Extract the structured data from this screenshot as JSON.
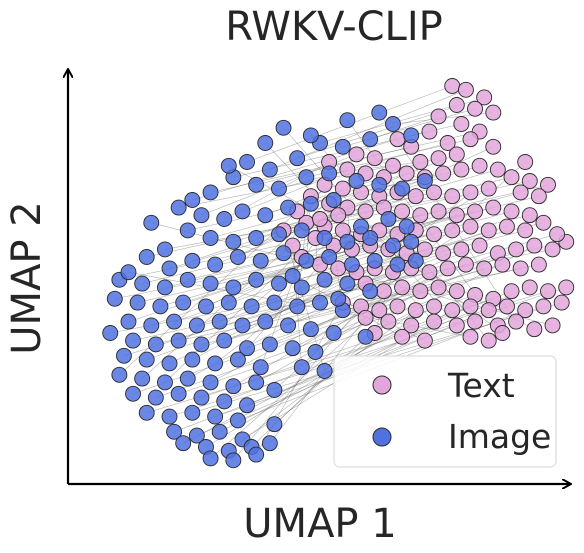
{
  "chart_data": {
    "type": "scatter",
    "title": "RWKV-CLIP",
    "xlabel": "UMAP 1",
    "ylabel": "UMAP 2",
    "xlim": [
      0,
      10
    ],
    "ylim": [
      0,
      10
    ],
    "grid": false,
    "legend_position": "bottom-right",
    "paired_lines": true,
    "colors": {
      "text": "#e3a6dc",
      "image": "#5072e0",
      "edge": "#2b2b2b",
      "link": "#555555",
      "axis": "#000000"
    },
    "series": [
      {
        "name": "Text",
        "points": [
          [
            7.9,
            10.0
          ],
          [
            8.2,
            9.9
          ],
          [
            8.6,
            9.7
          ],
          [
            8.0,
            9.5
          ],
          [
            8.4,
            9.4
          ],
          [
            7.6,
            9.2
          ],
          [
            8.8,
            9.3
          ],
          [
            8.1,
            9.0
          ],
          [
            7.4,
            8.8
          ],
          [
            8.5,
            8.8
          ],
          [
            6.7,
            8.6
          ],
          [
            7.0,
            8.4
          ],
          [
            7.8,
            8.5
          ],
          [
            8.3,
            8.6
          ],
          [
            7.2,
            8.0
          ],
          [
            7.6,
            8.1
          ],
          [
            8.0,
            8.2
          ],
          [
            8.8,
            8.4
          ],
          [
            6.2,
            8.1
          ],
          [
            6.6,
            7.9
          ],
          [
            5.8,
            8.2
          ],
          [
            5.2,
            8.0
          ],
          [
            5.6,
            7.8
          ],
          [
            6.0,
            7.7
          ],
          [
            6.4,
            7.6
          ],
          [
            6.9,
            7.7
          ],
          [
            7.3,
            7.6
          ],
          [
            7.7,
            7.7
          ],
          [
            8.1,
            7.8
          ],
          [
            8.5,
            7.9
          ],
          [
            8.9,
            7.8
          ],
          [
            9.2,
            7.6
          ],
          [
            9.6,
            7.5
          ],
          [
            10.0,
            7.4
          ],
          [
            9.4,
            7.2
          ],
          [
            9.8,
            7.1
          ],
          [
            8.7,
            7.3
          ],
          [
            8.3,
            7.2
          ],
          [
            7.9,
            7.1
          ],
          [
            7.5,
            7.2
          ],
          [
            7.1,
            7.1
          ],
          [
            6.7,
            7.2
          ],
          [
            6.3,
            7.1
          ],
          [
            5.9,
            7.2
          ],
          [
            5.5,
            7.3
          ],
          [
            5.1,
            7.4
          ],
          [
            4.8,
            7.1
          ],
          [
            5.2,
            6.9
          ],
          [
            5.6,
            6.8
          ],
          [
            6.0,
            6.7
          ],
          [
            6.4,
            6.8
          ],
          [
            6.8,
            6.7
          ],
          [
            7.2,
            6.6
          ],
          [
            7.6,
            6.7
          ],
          [
            8.0,
            6.6
          ],
          [
            8.4,
            6.7
          ],
          [
            8.8,
            6.8
          ],
          [
            9.2,
            6.7
          ],
          [
            9.6,
            6.6
          ],
          [
            9.9,
            6.4
          ],
          [
            9.5,
            6.2
          ],
          [
            9.1,
            6.3
          ],
          [
            8.7,
            6.2
          ],
          [
            8.3,
            6.3
          ],
          [
            7.9,
            6.2
          ],
          [
            7.5,
            6.1
          ],
          [
            7.1,
            6.2
          ],
          [
            6.7,
            6.1
          ],
          [
            6.3,
            6.2
          ],
          [
            5.9,
            6.1
          ],
          [
            5.5,
            6.2
          ],
          [
            5.1,
            6.3
          ],
          [
            4.7,
            6.4
          ],
          [
            4.9,
            6.0
          ],
          [
            5.3,
            5.8
          ],
          [
            5.7,
            5.7
          ],
          [
            6.1,
            5.8
          ],
          [
            6.5,
            5.7
          ],
          [
            6.9,
            5.6
          ],
          [
            7.3,
            5.7
          ],
          [
            7.7,
            5.6
          ],
          [
            8.1,
            5.7
          ],
          [
            8.5,
            5.8
          ],
          [
            8.9,
            5.6
          ],
          [
            9.3,
            5.7
          ],
          [
            9.7,
            5.8
          ],
          [
            10.1,
            5.7
          ],
          [
            10.4,
            5.9
          ],
          [
            10.2,
            6.1
          ],
          [
            9.8,
            5.3
          ],
          [
            9.4,
            5.2
          ],
          [
            9.0,
            5.3
          ],
          [
            8.6,
            5.2
          ],
          [
            8.2,
            5.3
          ],
          [
            7.8,
            5.2
          ],
          [
            7.4,
            5.1
          ],
          [
            7.0,
            5.2
          ],
          [
            6.6,
            5.1
          ],
          [
            6.2,
            5.2
          ],
          [
            5.8,
            5.1
          ],
          [
            5.4,
            5.2
          ],
          [
            5.0,
            5.3
          ],
          [
            4.6,
            5.5
          ],
          [
            4.4,
            5.8
          ],
          [
            4.2,
            6.2
          ],
          [
            4.5,
            6.7
          ],
          [
            5.0,
            6.5
          ],
          [
            5.4,
            6.6
          ],
          [
            6.0,
            4.8
          ],
          [
            6.4,
            4.6
          ],
          [
            6.8,
            4.7
          ],
          [
            7.2,
            4.6
          ],
          [
            7.6,
            4.7
          ],
          [
            8.0,
            4.6
          ],
          [
            8.4,
            4.5
          ],
          [
            8.8,
            4.4
          ],
          [
            9.2,
            4.6
          ],
          [
            9.6,
            4.7
          ],
          [
            10.0,
            4.6
          ],
          [
            10.4,
            4.7
          ],
          [
            10.3,
            4.3
          ],
          [
            9.9,
            4.2
          ],
          [
            9.5,
            4.1
          ],
          [
            9.1,
            4.2
          ],
          [
            8.7,
            4.1
          ],
          [
            8.3,
            4.2
          ],
          [
            7.9,
            4.1
          ],
          [
            7.5,
            4.2
          ],
          [
            7.1,
            4.1
          ],
          [
            6.7,
            4.2
          ],
          [
            6.3,
            4.1
          ],
          [
            5.9,
            4.2
          ],
          [
            5.5,
            4.3
          ],
          [
            6.0,
            3.9
          ],
          [
            6.5,
            3.8
          ],
          [
            7.0,
            3.7
          ],
          [
            7.5,
            3.8
          ],
          [
            8.0,
            3.7
          ],
          [
            8.4,
            3.8
          ],
          [
            8.9,
            3.7
          ],
          [
            9.3,
            3.8
          ],
          [
            9.7,
            3.6
          ],
          [
            10.1,
            3.7
          ],
          [
            8.3,
            3.4
          ],
          [
            8.7,
            3.3
          ],
          [
            9.0,
            3.5
          ],
          [
            6.2,
            3.5
          ],
          [
            6.8,
            3.4
          ],
          [
            7.3,
            3.3
          ],
          [
            9.5,
            8.0
          ]
        ]
      },
      {
        "name": "Image",
        "points": [
          [
            3.4,
            8.0
          ],
          [
            3.9,
            7.8
          ],
          [
            4.5,
            8.1
          ],
          [
            5.0,
            8.5
          ],
          [
            5.5,
            8.4
          ],
          [
            6.1,
            8.6
          ],
          [
            6.6,
            9.0
          ],
          [
            7.0,
            8.7
          ],
          [
            3.1,
            7.6
          ],
          [
            2.6,
            7.2
          ],
          [
            2.2,
            7.0
          ],
          [
            3.6,
            7.4
          ],
          [
            4.1,
            7.3
          ],
          [
            4.7,
            7.6
          ],
          [
            5.2,
            7.7
          ],
          [
            5.8,
            7.5
          ],
          [
            6.3,
            7.4
          ],
          [
            6.8,
            7.3
          ],
          [
            7.3,
            7.5
          ],
          [
            1.9,
            6.8
          ],
          [
            2.4,
            6.6
          ],
          [
            2.9,
            6.5
          ],
          [
            3.3,
            6.7
          ],
          [
            3.8,
            6.6
          ],
          [
            4.3,
            6.8
          ],
          [
            4.8,
            6.9
          ],
          [
            5.3,
            7.0
          ],
          [
            2.1,
            6.2
          ],
          [
            2.6,
            6.0
          ],
          [
            3.1,
            5.9
          ],
          [
            3.6,
            6.0
          ],
          [
            4.1,
            6.1
          ],
          [
            4.6,
            6.2
          ],
          [
            5.1,
            6.0
          ],
          [
            5.6,
            5.9
          ],
          [
            6.1,
            6.0
          ],
          [
            6.6,
            5.8
          ],
          [
            7.0,
            5.9
          ],
          [
            1.6,
            5.7
          ],
          [
            1.2,
            5.5
          ],
          [
            1.7,
            5.2
          ],
          [
            2.2,
            5.4
          ],
          [
            2.7,
            5.3
          ],
          [
            3.2,
            5.5
          ],
          [
            3.7,
            5.4
          ],
          [
            4.2,
            5.6
          ],
          [
            4.7,
            5.4
          ],
          [
            5.2,
            5.5
          ],
          [
            5.7,
            5.3
          ],
          [
            6.2,
            5.4
          ],
          [
            6.7,
            5.3
          ],
          [
            7.1,
            5.4
          ],
          [
            0.6,
            4.9
          ],
          [
            1.1,
            4.8
          ],
          [
            1.6,
            4.7
          ],
          [
            2.1,
            4.9
          ],
          [
            2.6,
            4.8
          ],
          [
            3.1,
            4.7
          ],
          [
            3.6,
            4.9
          ],
          [
            4.1,
            4.8
          ],
          [
            4.6,
            4.7
          ],
          [
            5.1,
            4.9
          ],
          [
            5.6,
            4.8
          ],
          [
            6.1,
            4.6
          ],
          [
            0.5,
            4.4
          ],
          [
            1.0,
            4.3
          ],
          [
            1.5,
            4.2
          ],
          [
            2.0,
            4.3
          ],
          [
            2.5,
            4.2
          ],
          [
            3.0,
            4.3
          ],
          [
            3.5,
            4.2
          ],
          [
            4.0,
            4.3
          ],
          [
            4.5,
            4.2
          ],
          [
            5.0,
            4.3
          ],
          [
            5.5,
            4.1
          ],
          [
            0.8,
            3.8
          ],
          [
            1.3,
            3.7
          ],
          [
            1.8,
            3.8
          ],
          [
            2.3,
            3.7
          ],
          [
            2.8,
            3.8
          ],
          [
            3.3,
            3.7
          ],
          [
            3.8,
            3.8
          ],
          [
            4.3,
            3.7
          ],
          [
            4.8,
            3.6
          ],
          [
            5.3,
            3.5
          ],
          [
            6.0,
            3.4
          ],
          [
            0.4,
            3.5
          ],
          [
            0.9,
            3.3
          ],
          [
            1.4,
            3.2
          ],
          [
            1.9,
            3.3
          ],
          [
            2.4,
            3.2
          ],
          [
            2.9,
            3.3
          ],
          [
            3.4,
            3.1
          ],
          [
            3.9,
            3.2
          ],
          [
            4.4,
            3.1
          ],
          [
            4.9,
            3.0
          ],
          [
            0.7,
            2.9
          ],
          [
            1.2,
            2.8
          ],
          [
            1.7,
            2.7
          ],
          [
            2.2,
            2.8
          ],
          [
            2.7,
            2.7
          ],
          [
            3.2,
            2.8
          ],
          [
            3.7,
            2.6
          ],
          [
            4.6,
            2.6
          ],
          [
            5.1,
            2.5
          ],
          [
            0.6,
            2.4
          ],
          [
            1.1,
            2.3
          ],
          [
            1.6,
            2.2
          ],
          [
            2.1,
            2.3
          ],
          [
            2.6,
            2.2
          ],
          [
            3.1,
            2.1
          ],
          [
            3.6,
            2.2
          ],
          [
            0.9,
            1.9
          ],
          [
            1.4,
            1.8
          ],
          [
            1.9,
            1.9
          ],
          [
            2.4,
            1.8
          ],
          [
            2.9,
            1.7
          ],
          [
            3.4,
            1.6
          ],
          [
            1.2,
            1.4
          ],
          [
            1.7,
            1.3
          ],
          [
            2.2,
            1.4
          ],
          [
            2.7,
            1.3
          ],
          [
            3.2,
            1.2
          ],
          [
            1.8,
            0.9
          ],
          [
            2.3,
            0.8
          ],
          [
            2.8,
            0.9
          ],
          [
            3.3,
            0.7
          ],
          [
            2.5,
            0.5
          ],
          [
            3.0,
            0.4
          ],
          [
            3.5,
            0.5
          ],
          [
            2.6,
            0.2
          ],
          [
            3.1,
            0.15
          ],
          [
            3.6,
            0.3
          ],
          [
            3.9,
            0.6
          ],
          [
            4.0,
            1.1
          ],
          [
            2.0,
            0.6
          ],
          [
            3.8,
            8.5
          ],
          [
            4.2,
            8.9
          ],
          [
            4.8,
            8.7
          ],
          [
            5.6,
            9.1
          ],
          [
            6.3,
            9.3
          ],
          [
            3.0,
            7.9
          ],
          [
            1.3,
            6.4
          ],
          [
            0.8,
            5.1
          ],
          [
            6.5,
            6.5
          ],
          [
            5.9,
            6.3
          ],
          [
            6.9,
            6.3
          ],
          [
            4.4,
            5.0
          ],
          [
            5.4,
            4.4
          ],
          [
            4.0,
            2.0
          ]
        ]
      }
    ]
  }
}
